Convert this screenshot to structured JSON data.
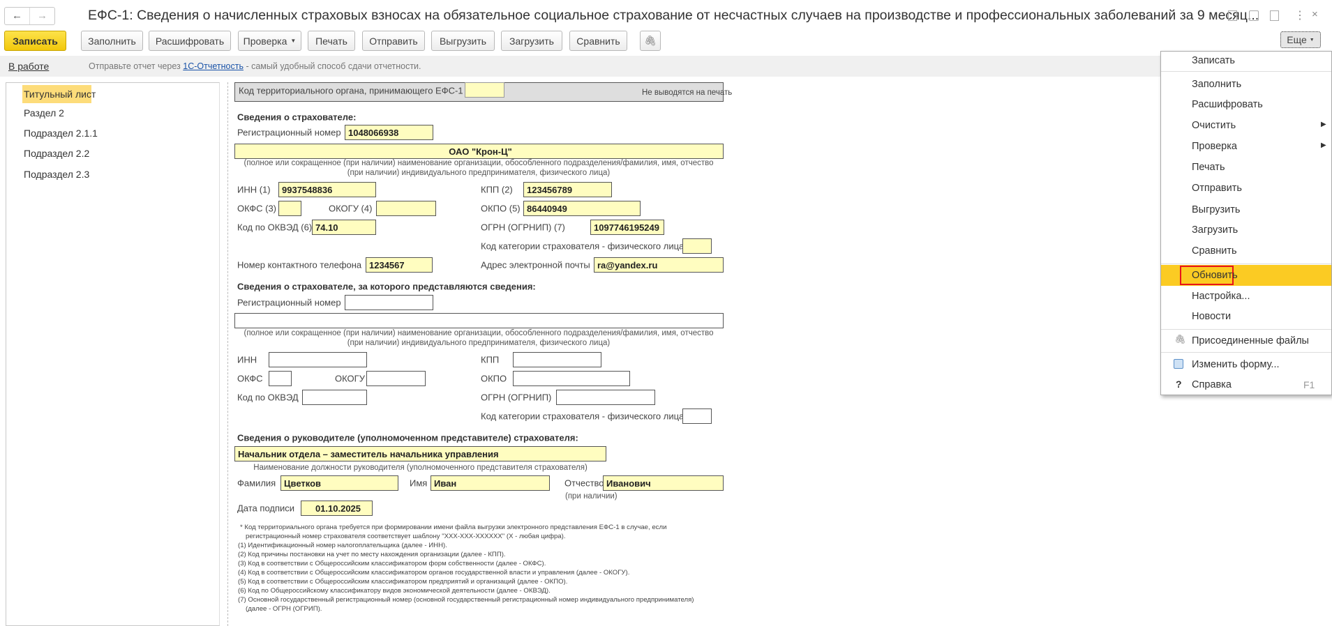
{
  "window": {
    "title": "ЕФС-1: Сведения о начисленных страховых взносах на обязательное социальное страхование от несчастных случаев на производстве и профессиональных заболеваний за 9 месяц...",
    "back": "←",
    "forward": "→"
  },
  "toolbar": {
    "save": "Записать",
    "fill": "Заполнить",
    "decode": "Расшифровать",
    "check": "Проверка",
    "print": "Печать",
    "send": "Отправить",
    "export": "Выгрузить",
    "import": "Загрузить",
    "compare": "Сравнить",
    "more": "Еще",
    "accent": "#f5d40f"
  },
  "infobar": {
    "status": "В работе",
    "msg_before": "Отправьте отчет через ",
    "link": "1С-Отчетность",
    "msg_after": " - самый удобный способ сдачи отчетности."
  },
  "sections": [
    "Титульный лист",
    "Раздел 2",
    "Подраздел 2.1.1",
    "Подраздел 2.2",
    "Подраздел 2.3"
  ],
  "form": {
    "terr_label": "Код территориального органа, принимающего ЕФС-1 *",
    "no_print": "Не выводятся на печать",
    "insurer_heading": "Сведения о страхователе:",
    "reg_label": "Регистрационный номер",
    "reg": "1048066938",
    "org_name": "ОАО \"Крон-Ц\"",
    "org_caption": "(полное или сокращенное (при наличии) наименование организации, обособленного подразделения/фамилия, имя, отчество (при наличии) индивидуального предпринимателя, физического лица)",
    "inn_label": "ИНН (1)",
    "inn": "9937548836",
    "kpp_label": "КПП (2)",
    "kpp": "123456789",
    "okfs_label": "ОКФС (3)",
    "okfs": "",
    "okogu_label": "ОКОГУ (4)",
    "okogu": "",
    "okpo_label": "ОКПО (5)",
    "okpo": "86440949",
    "okved_label": "Код по ОКВЭД (6)",
    "okved": "74.10",
    "ogrn_label": "ОГРН (ОГРНИП) (7)",
    "ogrn": "1097746195249",
    "cat_label": "Код категории страхователя - физического лица",
    "cat": "",
    "phone_label": "Номер контактного телефона",
    "phone": "1234567",
    "email_label": "Адрес электронной почты",
    "email": "ra@yandex.ru",
    "sub_heading": "Сведения о страхователе, за которого представляются сведения:",
    "sub_reg_label": "Регистрационный номер",
    "sub_inn_label": "ИНН",
    "sub_kpp_label": "КПП",
    "sub_okfs_label": "ОКФС",
    "sub_okogu_label": "ОКОГУ",
    "sub_okpo_label": "ОКПО",
    "sub_okved_label": "Код по ОКВЭД",
    "sub_ogrn_label": "ОГРН (ОГРНИП)",
    "sub_cat_label": "Код категории страхователя - физического лица",
    "head_heading": "Сведения о руководителе (уполномоченном представителе) страхователя:",
    "position": "Начальник отдела – заместитель начальника управления",
    "position_caption": "Наименование должности руководителя (уполномоченного представителя страхователя)",
    "surname_label": "Фамилия",
    "surname": "Цветков",
    "name_label": "Имя",
    "name": "Иван",
    "patronymic_label": "Отчество",
    "patronymic": "Иванович",
    "patronymic_note": "(при наличии)",
    "date_label": "Дата подписи",
    "date": "01.10.2025",
    "footnotes": [
      "*  Код территориального органа требуется при формировании имени файла выгрузки электронного представления ЕФС-1 в случае, если",
      "регистрационный номер страхователя соответствует шаблону \"XXX-XXX-XXXXXX\" (X - любая цифра).",
      "(1) Идентификационный номер налогоплательщика (далее - ИНН).",
      "(2) Код причины постановки на учет по месту нахождения организации (далее - КПП).",
      "(3) Код в соответствии с Общероссийским классификатором форм собственности (далее - ОКФС).",
      "(4) Код в соответствии с Общероссийским классификатором органов государственной власти и управления (далее - ОКОГУ).",
      "(5) Код в соответствии с Общероссийским классификатором предприятий и организаций (далее - ОКПО).",
      "(6) Код по Общероссийскому классификатору видов экономической деятельности (далее - ОКВЭД).",
      "(7) Основной государственный регистрационный номер (основной государственный регистрационный номер индивидуального предпринимателя)",
      "(далее - ОГРН (ОГРИП)."
    ]
  },
  "menu": {
    "items": [
      "Записать",
      "Заполнить",
      "Расшифровать",
      "Очистить",
      "Проверка",
      "Печать",
      "Отправить",
      "Выгрузить",
      "Загрузить",
      "Сравнить",
      "Обновить",
      "Настройка...",
      "Новости",
      "Присоединенные файлы",
      "Изменить форму...",
      "Справка"
    ],
    "shortcut": "F1",
    "highlight": "#fbcb23",
    "highlight_border": "#e8141a"
  }
}
